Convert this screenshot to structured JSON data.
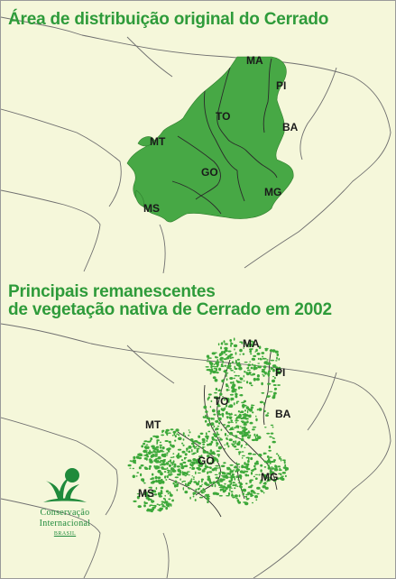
{
  "maps": {
    "top": {
      "title": "Área de distribuição original do Cerrado",
      "states": [
        "MA",
        "PI",
        "TO",
        "BA",
        "MT",
        "GO",
        "MG",
        "MS"
      ]
    },
    "bottom": {
      "title_line1": "Principais remanescentes",
      "title_line2": "de vegetação nativa de Cerrado em 2002",
      "states": [
        "MA",
        "PI",
        "TO",
        "BA",
        "MT",
        "GO",
        "MG",
        "MS"
      ]
    }
  },
  "logo": {
    "line1": "Conservação",
    "line2": "Internacional",
    "line3": "BRASIL"
  },
  "colors": {
    "background": "#f5f7da",
    "title": "#2e9b3a",
    "cerrado": "#47a845",
    "state_border": "#6f6f6f"
  }
}
